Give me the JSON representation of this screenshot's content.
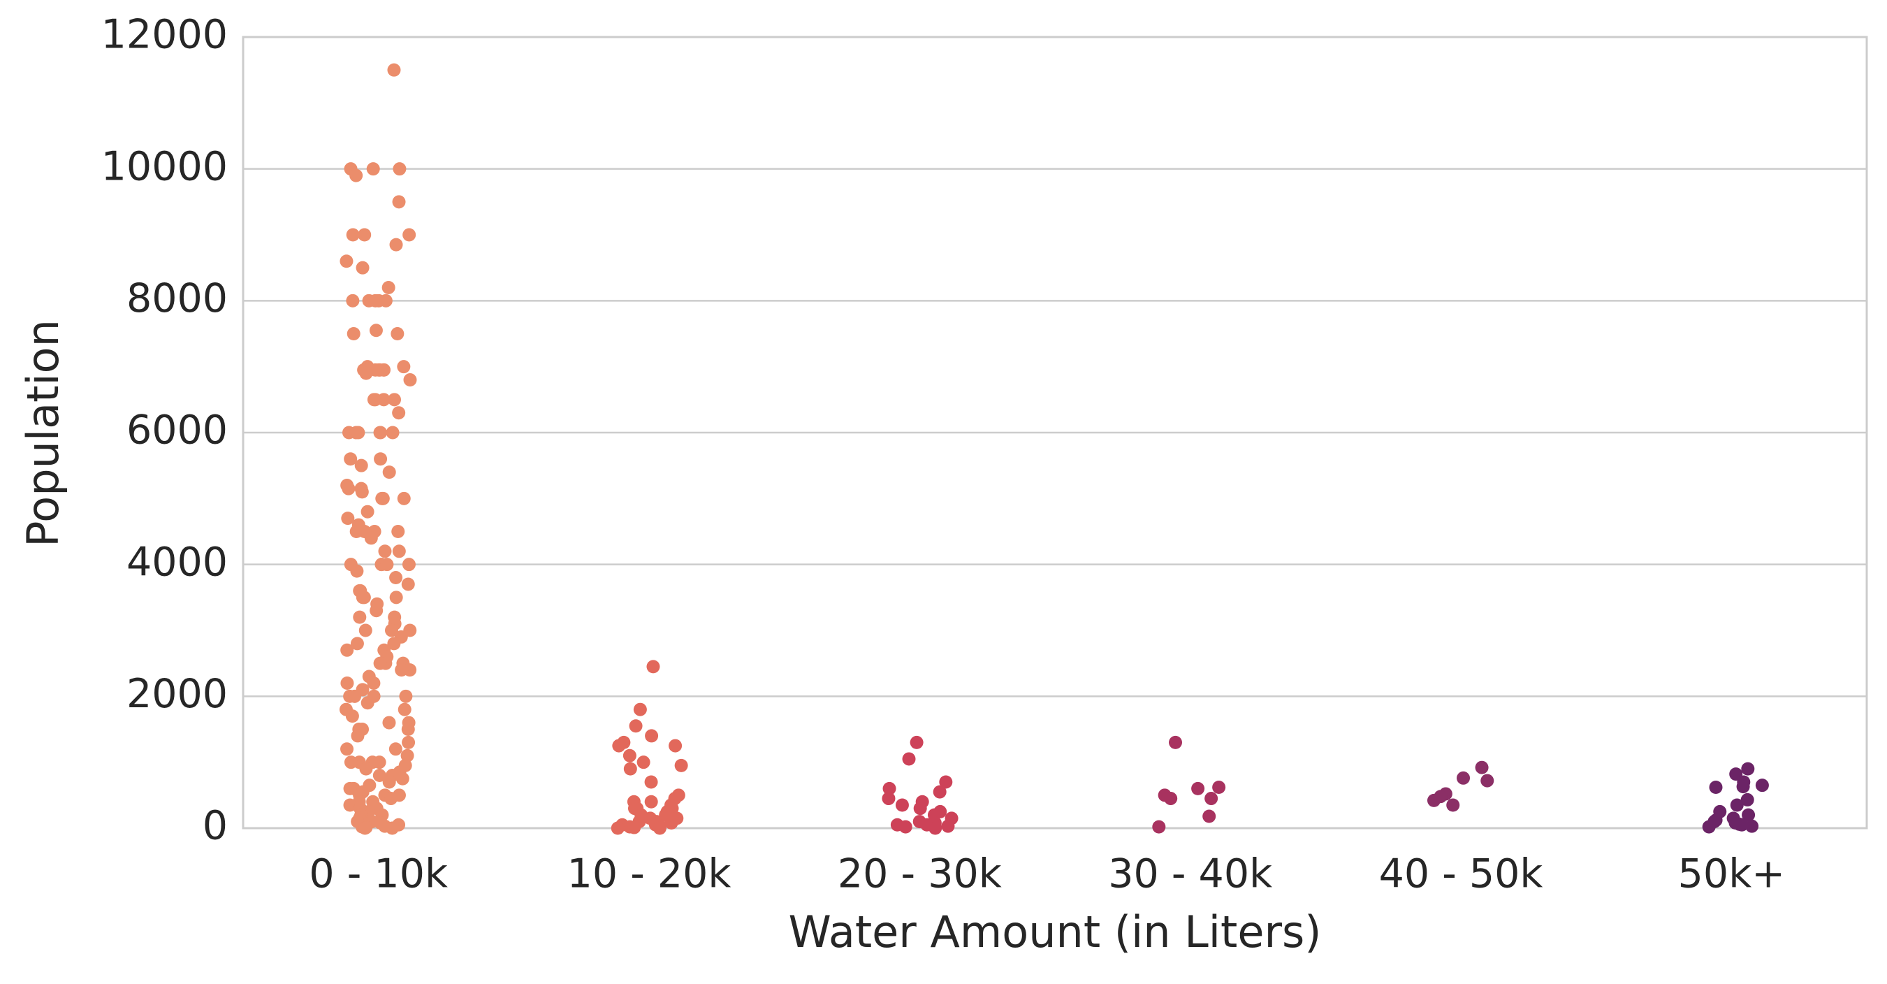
{
  "chart_data": {
    "type": "strip",
    "x_label": "Water Amount (in Liters)",
    "y_label": "Population",
    "categories": [
      "0 - 10k",
      "10 - 20k",
      "20 - 30k",
      "30 - 40k",
      "40 - 50k",
      "50k+"
    ],
    "colors": [
      "#eb8d6b",
      "#e2685b",
      "#cd4258",
      "#a8325f",
      "#8b2f66",
      "#6b2466"
    ],
    "values": [
      [
        11500,
        10000,
        10000,
        10000,
        9900,
        9500,
        9000,
        9000,
        9000,
        8850,
        8600,
        8500,
        8200,
        8000,
        8000,
        8000,
        8000,
        8000,
        7550,
        7500,
        7500,
        7000,
        7000,
        6950,
        6950,
        6950,
        6950,
        6950,
        6950,
        6900,
        6800,
        6500,
        6500,
        6500,
        6500,
        6300,
        6000,
        6000,
        6000,
        6000,
        6000,
        6000,
        5600,
        5600,
        5500,
        5400,
        5200,
        5150,
        5150,
        5100,
        5000,
        5000,
        5000,
        4800,
        4700,
        4600,
        4500,
        4500,
        4500,
        4500,
        4400,
        4200,
        4200,
        4000,
        4000,
        4000,
        4000,
        4000,
        3900,
        3800,
        3700,
        3600,
        3600,
        3500,
        3500,
        3500,
        3400,
        3300,
        3200,
        3200,
        3100,
        3000,
        3000,
        3000,
        2900,
        2800,
        2800,
        2700,
        2700,
        2600,
        2500,
        2500,
        2500,
        2400,
        2400,
        2300,
        2200,
        2200,
        2100,
        2000,
        2000,
        2000,
        2000,
        1900,
        1800,
        1800,
        1700,
        1600,
        1600,
        1500,
        1500,
        1500,
        1400,
        1300,
        1200,
        1200,
        1100,
        1000,
        1000,
        1000,
        1000,
        950,
        900,
        850,
        800,
        800,
        750,
        700,
        650,
        600,
        600,
        550,
        500,
        500,
        500,
        450,
        400,
        400,
        350,
        300,
        300,
        250,
        200,
        200,
        150,
        100,
        100,
        80,
        50,
        30,
        20,
        10,
        0,
        0
      ],
      [
        2450,
        1800,
        1550,
        1400,
        1300,
        1250,
        1250,
        1100,
        1000,
        950,
        900,
        700,
        500,
        450,
        400,
        400,
        350,
        300,
        300,
        300,
        250,
        200,
        200,
        150,
        150,
        100,
        100,
        80,
        50,
        50,
        30,
        20,
        10,
        0,
        0
      ],
      [
        1300,
        1050,
        700,
        600,
        550,
        450,
        400,
        350,
        300,
        250,
        200,
        150,
        100,
        80,
        50,
        50,
        30,
        20,
        0
      ],
      [
        1300,
        620,
        600,
        500,
        450,
        450,
        180,
        20
      ],
      [
        920,
        760,
        720,
        520,
        480,
        420,
        350
      ],
      [
        900,
        820,
        700,
        650,
        630,
        620,
        430,
        350,
        250,
        200,
        150,
        120,
        100,
        80,
        60,
        50,
        30,
        20
      ]
    ],
    "ylim": [
      0,
      12000
    ],
    "yticks": [
      0,
      2000,
      4000,
      6000,
      8000,
      10000,
      12000
    ],
    "grid": true
  }
}
